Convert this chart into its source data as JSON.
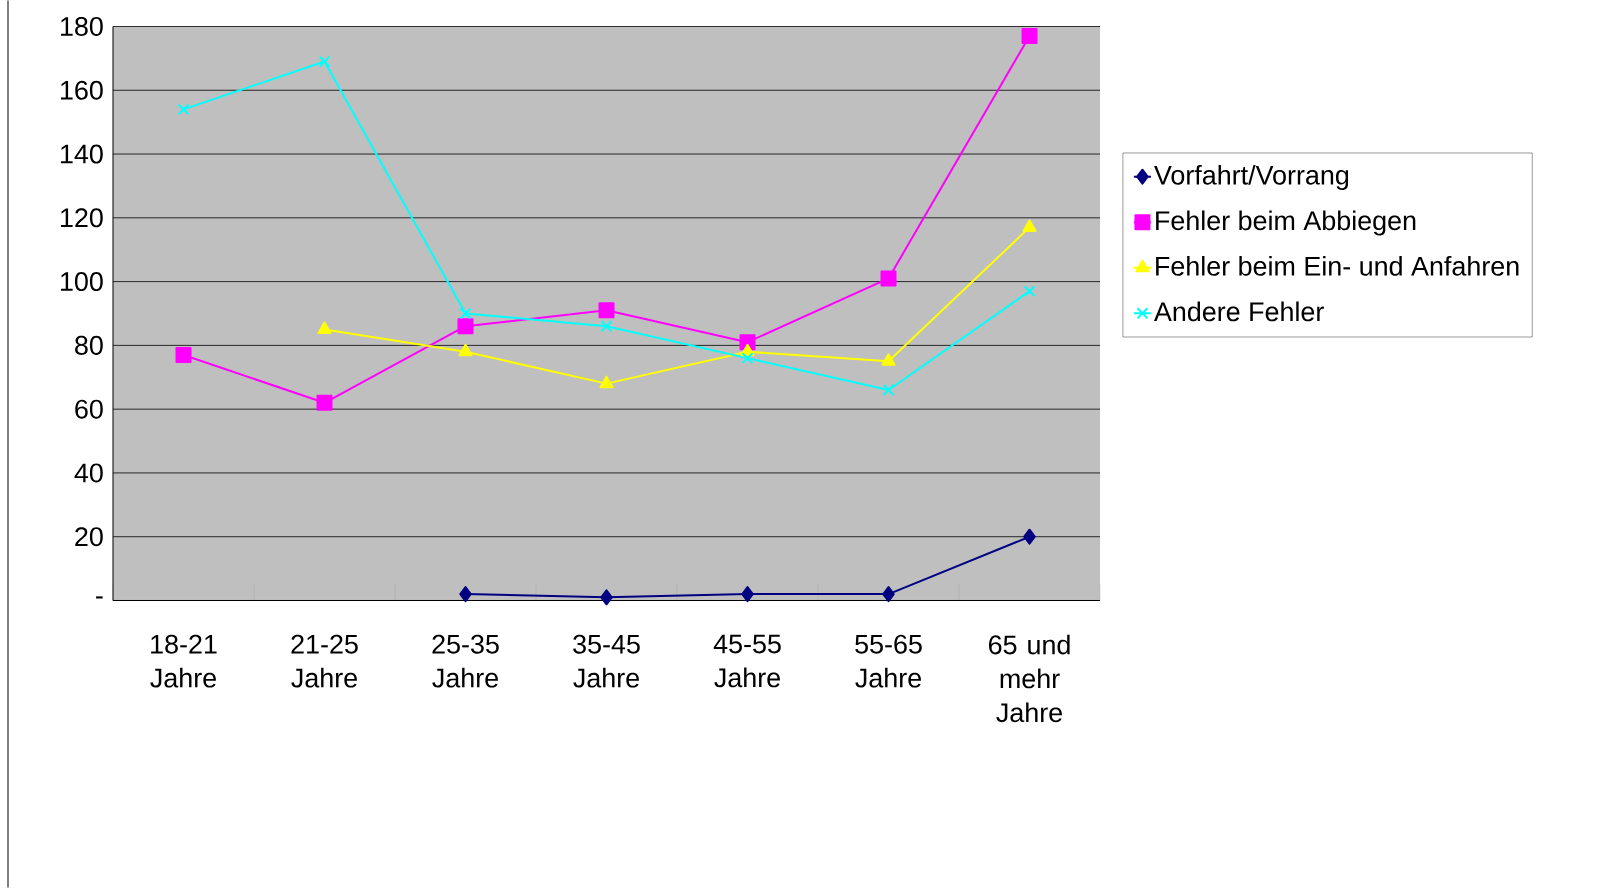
{
  "chart_data": {
    "type": "line",
    "categories": [
      "18-21 Jahre",
      "21-25 Jahre",
      "25-35 Jahre",
      "35-45 Jahre",
      "45-55 Jahre",
      "55-65 Jahre",
      "65 und mehr Jahre"
    ],
    "series": [
      {
        "name": "Vorfahrt/Vorrang",
        "color": "#000080",
        "marker": "diamond",
        "values": [
          null,
          null,
          2,
          1,
          2,
          2,
          20
        ]
      },
      {
        "name": "Fehler beim Abbiegen",
        "color": "#ff00ff",
        "marker": "square",
        "values": [
          77,
          62,
          86,
          91,
          81,
          101,
          177
        ]
      },
      {
        "name": "Fehler beim Ein- und Anfahren",
        "color": "#ffff00",
        "marker": "triangle",
        "values": [
          null,
          85,
          78,
          68,
          78,
          75,
          117
        ]
      },
      {
        "name": "Andere Fehler",
        "color": "#00ffff",
        "marker": "cross",
        "values": [
          154,
          169,
          90,
          86,
          76,
          66,
          97
        ]
      }
    ],
    "ylim": [
      0,
      180
    ],
    "yticks": [
      {
        "value": 0,
        "label": "-"
      },
      20,
      40,
      60,
      80,
      100,
      120,
      140,
      160,
      180
    ],
    "grid": "y",
    "legend": "right"
  }
}
